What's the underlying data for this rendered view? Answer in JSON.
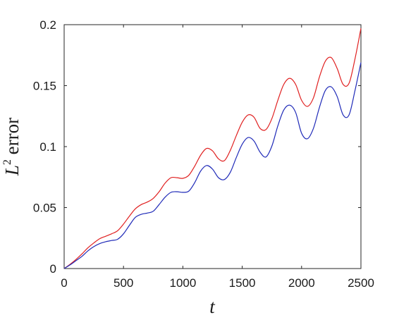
{
  "chart_data": {
    "type": "line",
    "title": "",
    "xlabel": "t",
    "ylabel_main": "L",
    "ylabel_sup": "2",
    "ylabel_rest": " error",
    "xlim": [
      0,
      2500
    ],
    "ylim": [
      0,
      0.2
    ],
    "xticks": [
      0,
      500,
      1000,
      1500,
      2000,
      2500
    ],
    "xtick_labels": [
      "0",
      "500",
      "1000",
      "1500",
      "2000",
      "2500"
    ],
    "yticks": [
      0,
      0.05,
      0.1,
      0.15,
      0.2
    ],
    "ytick_labels": [
      "0",
      "0.05",
      "0.1",
      "0.15",
      "0.2"
    ],
    "grid": false,
    "legend": "none",
    "x": [
      0,
      50,
      100,
      150,
      200,
      250,
      300,
      350,
      400,
      450,
      500,
      550,
      600,
      650,
      700,
      750,
      800,
      850,
      900,
      950,
      1000,
      1050,
      1100,
      1150,
      1200,
      1250,
      1300,
      1350,
      1400,
      1450,
      1500,
      1550,
      1600,
      1650,
      1700,
      1750,
      1800,
      1850,
      1900,
      1950,
      2000,
      2050,
      2100,
      2150,
      2200,
      2250,
      2300,
      2350,
      2400,
      2450,
      2500
    ],
    "series": [
      {
        "color": "#e02020",
        "values": [
          0,
          0.0035,
          0.0075,
          0.012,
          0.017,
          0.021,
          0.0245,
          0.0265,
          0.0285,
          0.031,
          0.0365,
          0.043,
          0.049,
          0.0525,
          0.0545,
          0.0575,
          0.063,
          0.07,
          0.0745,
          0.0745,
          0.074,
          0.0765,
          0.084,
          0.093,
          0.0985,
          0.0965,
          0.09,
          0.0885,
          0.097,
          0.109,
          0.12,
          0.126,
          0.124,
          0.115,
          0.114,
          0.123,
          0.138,
          0.151,
          0.156,
          0.151,
          0.138,
          0.133,
          0.14,
          0.157,
          0.17,
          0.173,
          0.164,
          0.151,
          0.152,
          0.172,
          0.197
        ]
      },
      {
        "color": "#1f2ab8",
        "values": [
          0,
          0.003,
          0.0065,
          0.01,
          0.0145,
          0.018,
          0.0205,
          0.022,
          0.023,
          0.024,
          0.0285,
          0.0355,
          0.042,
          0.0445,
          0.0455,
          0.047,
          0.0525,
          0.0585,
          0.0625,
          0.063,
          0.0625,
          0.0635,
          0.0705,
          0.08,
          0.0845,
          0.0815,
          0.0745,
          0.073,
          0.079,
          0.091,
          0.102,
          0.1075,
          0.1045,
          0.0955,
          0.0915,
          0.1005,
          0.117,
          0.13,
          0.134,
          0.128,
          0.111,
          0.1065,
          0.115,
          0.132,
          0.146,
          0.149,
          0.141,
          0.126,
          0.126,
          0.146,
          0.169
        ]
      }
    ]
  }
}
